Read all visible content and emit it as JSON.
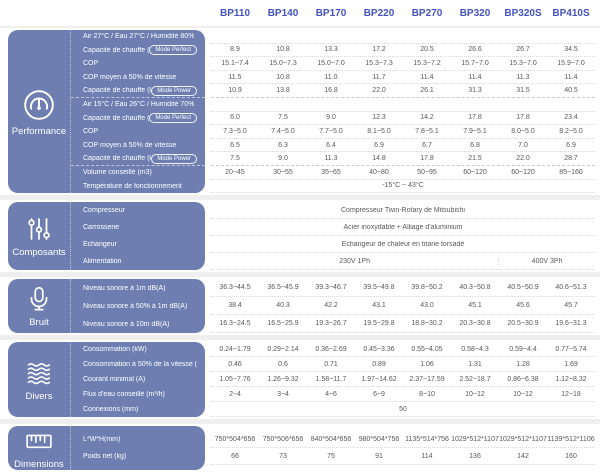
{
  "colors": {
    "panel_blue": "#6e7eb1",
    "header_text_blue": "#4353c3",
    "value_text_gray": "#585858",
    "divider_gray": "#d9d9d9"
  },
  "header": {
    "columns": [
      "BP110",
      "BP140",
      "BP170",
      "BP220",
      "BP270",
      "BP320",
      "BP320S",
      "BP410S"
    ]
  },
  "sections": [
    {
      "name": "Performance",
      "icon": "gauge-icon",
      "rows": [
        {
          "type": "condition",
          "label": "Air 27°C / Eau 27°C / Humidité 80%"
        },
        {
          "label": "Capacité de chauffe (kW)",
          "badge": "Mode Perfect",
          "values": [
            "8.9",
            "10.8",
            "13.3",
            "17.2",
            "20.5",
            "26.6",
            "26.7",
            "34.5"
          ]
        },
        {
          "label": "COP",
          "values": [
            "15.1~7.4",
            "15.0~7.3",
            "15.0~7.0",
            "15.3~7.3",
            "15.3~7.2",
            "15.7~7.0",
            "15.3~7.0",
            "15.9~7.0"
          ]
        },
        {
          "label": "COP moyen à 50% de vitesse",
          "values": [
            "11.5",
            "10.8",
            "11.0",
            "11.7",
            "11.4",
            "11.4",
            "11.3",
            "11.4"
          ]
        },
        {
          "label": "Capacité de chauffe (kW)",
          "badge": "Mode Power",
          "group_end": true,
          "values": [
            "10.9",
            "13.8",
            "16.8",
            "22.0",
            "26.1",
            "31.3",
            "31.5",
            "40.5"
          ]
        },
        {
          "type": "condition",
          "label": "Air 15°C / Eau 26°C / Humidité 70%"
        },
        {
          "label": "Capacité de chauffe (kW)",
          "badge": "Mode Perfect",
          "values": [
            "6.0",
            "7.5",
            "9.0",
            "12.3",
            "14.2",
            "17.8",
            "17.8",
            "23.4"
          ]
        },
        {
          "label": "COP",
          "values": [
            "7.3~5.0",
            "7.4~5.0",
            "7.7~5.0",
            "8.1~5.0",
            "7.8~5.1",
            "7.9~5.1",
            "8.0~5.0",
            "8.2~5.0"
          ]
        },
        {
          "label": "COP moyen à 50% de vitesse",
          "values": [
            "6.5",
            "6.3",
            "6.4",
            "6.9",
            "6.7",
            "6.8",
            "7.0",
            "6.9"
          ]
        },
        {
          "label": "Capacité de chauffe (kW)",
          "badge": "Mode Power",
          "group_end": true,
          "values": [
            "7.5",
            "9.0",
            "11.3",
            "14.8",
            "17.8",
            "21.5",
            "22.0",
            "28.7"
          ]
        },
        {
          "label": "Volume conseillé (m3)",
          "values": [
            "20~45",
            "30~55",
            "35~65",
            "40~80",
            "50~95",
            "60~120",
            "60~120",
            "85~160"
          ]
        },
        {
          "label": "Température de fonctionnement",
          "span_value": "-15°C ~ 43°C"
        }
      ]
    },
    {
      "name": "Composants",
      "icon": "sliders-icon",
      "rows": [
        {
          "label": "Compresseur",
          "span_value": "Compresseur Twin-Rotary de Mitsubishi"
        },
        {
          "label": "Carrosserie",
          "span_value": "Acier inoxydable + Alliage d'aluminium"
        },
        {
          "label": "Échangeur",
          "span_value": "Échangeur de chaleur en titane torsadé"
        },
        {
          "label": "Alimentation",
          "split_values": [
            {
              "text": "230V 1Ph",
              "span": 6
            },
            {
              "text": "400V 3Ph",
              "span": 2
            }
          ]
        }
      ]
    },
    {
      "name": "Bruit",
      "icon": "mic-icon",
      "rows": [
        {
          "label": "Niveau sonore à 1m dB(A)",
          "values": [
            "36.3~44.5",
            "36.5~45.9",
            "39.3~46.7",
            "39.5~49.8",
            "39.8~50.2",
            "40.3~50.8",
            "40.5~50.9",
            "40.6~51.3"
          ]
        },
        {
          "label": "Niveau sonore à 50% à 1m dB(A)",
          "values": [
            "38.4",
            "40.3",
            "42.2",
            "43.1",
            "43.0",
            "45.1",
            "45.6",
            "45.7"
          ]
        },
        {
          "label": "Niveau sonore à 10m dB(A)",
          "values": [
            "16.3~24.5",
            "16.5~25.9",
            "19.3~26.7",
            "19.5~29.8",
            "18.8~30.2",
            "20.3~30.8",
            "20.5~30.9",
            "19.6~31.3"
          ]
        }
      ]
    },
    {
      "name": "Divers",
      "icon": "waves-icon",
      "rows": [
        {
          "label": "Consommation (kW)",
          "values": [
            "0.24~1.79",
            "0.29~2.14",
            "0.36~2.69",
            "0.45~3.36",
            "0.55~4.05",
            "0.58~4.3",
            "0.59~4.4",
            "0.77~5.74"
          ]
        },
        {
          "label": "Consommation à 50% de la vitesse (kW)",
          "values": [
            "0.46",
            "0.6",
            "0.71",
            "0.89",
            "1.06",
            "1.31",
            "1.28",
            "1.69"
          ]
        },
        {
          "label": "Courant minimal (A)",
          "values": [
            "1.05~7.76",
            "1.26~9.32",
            "1.58~11.7",
            "1.97~14.62",
            "2.37~17.59",
            "2.52~18.7",
            "0.86~6.38",
            "1.12~8.32"
          ]
        },
        {
          "label": "Flux d'eau conseillé (m³/h)",
          "values": [
            "2~4",
            "3~4",
            "4~6",
            "6~9",
            "8~10",
            "10~12",
            "10~12",
            "12~18"
          ]
        },
        {
          "label": "Connexions (mm)",
          "span_value": "50"
        }
      ]
    },
    {
      "name": "Dimensions",
      "icon": "ruler-icon",
      "rows": [
        {
          "label": "L*W*H(mm)",
          "values": [
            "750*504*656",
            "750*506*656",
            "840*504*656",
            "980*504*756",
            "1135*514*756",
            "1029*512*1107",
            "1029*512*1107",
            "1139*512*1106"
          ]
        },
        {
          "label": "Poids net (kg)",
          "values": [
            "66",
            "73",
            "75",
            "91",
            "114",
            "136",
            "142",
            "160"
          ]
        }
      ]
    }
  ]
}
